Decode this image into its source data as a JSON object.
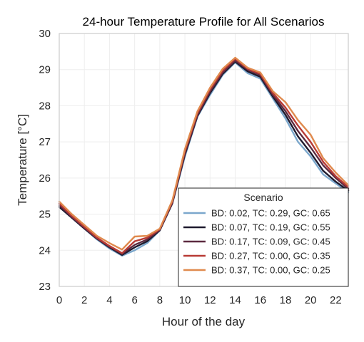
{
  "chart_data": {
    "type": "line",
    "title": "24-hour Temperature Profile for All Scenarios",
    "xlabel": "Hour of the day",
    "ylabel": "Temperature [°C]",
    "xlim": [
      0,
      23
    ],
    "ylim": [
      23,
      30
    ],
    "xticks": [
      0,
      2,
      4,
      6,
      8,
      10,
      12,
      14,
      16,
      18,
      20,
      22
    ],
    "yticks": [
      23,
      24,
      25,
      26,
      27,
      28,
      29,
      30
    ],
    "grid": true,
    "legend_title": "Scenario",
    "legend_position": "lower-right",
    "x": [
      0,
      1,
      2,
      3,
      4,
      5,
      6,
      7,
      8,
      9,
      10,
      11,
      12,
      13,
      14,
      15,
      16,
      17,
      18,
      19,
      20,
      21,
      22,
      23
    ],
    "series": [
      {
        "name": "BD: 0.02, TC: 0.29, GC: 0.65",
        "color": "#7ba7cc",
        "values": [
          25.2,
          24.9,
          24.6,
          24.3,
          24.05,
          23.85,
          24.0,
          24.2,
          24.55,
          25.3,
          26.6,
          27.7,
          28.3,
          28.85,
          29.2,
          28.9,
          28.75,
          28.2,
          27.65,
          27.0,
          26.6,
          26.1,
          25.85,
          25.6
        ]
      },
      {
        "name": "BD: 0.07, TC: 0.19, GC: 0.55",
        "color": "#1e1a2e",
        "values": [
          25.2,
          24.9,
          24.6,
          24.32,
          24.08,
          23.87,
          24.08,
          24.25,
          24.55,
          25.3,
          26.65,
          27.72,
          28.35,
          28.88,
          29.22,
          28.95,
          28.8,
          28.25,
          27.75,
          27.15,
          26.7,
          26.2,
          25.9,
          25.65
        ]
      },
      {
        "name": "BD: 0.17, TC: 0.09, GC: 0.45",
        "color": "#5c2a40",
        "values": [
          25.25,
          24.92,
          24.62,
          24.33,
          24.1,
          23.9,
          24.15,
          24.3,
          24.57,
          25.32,
          26.7,
          27.75,
          28.4,
          28.92,
          29.25,
          29.0,
          28.85,
          28.3,
          27.85,
          27.3,
          26.85,
          26.35,
          26.0,
          25.7
        ]
      },
      {
        "name": "BD: 0.27, TC: 0.00, GC: 0.35",
        "color": "#b83a35",
        "values": [
          25.3,
          24.95,
          24.65,
          24.35,
          24.12,
          23.92,
          24.25,
          24.35,
          24.58,
          25.35,
          26.75,
          27.8,
          28.45,
          28.97,
          29.3,
          29.02,
          28.88,
          28.35,
          27.95,
          27.45,
          27.0,
          26.45,
          26.05,
          25.75
        ]
      },
      {
        "name": "BD: 0.37, TC: 0.00, GC: 0.25",
        "color": "#e08a4e",
        "values": [
          25.35,
          25.0,
          24.7,
          24.4,
          24.2,
          24.02,
          24.38,
          24.4,
          24.6,
          25.38,
          26.8,
          27.85,
          28.5,
          29.02,
          29.33,
          29.05,
          28.92,
          28.4,
          28.1,
          27.6,
          27.2,
          26.55,
          26.15,
          25.8
        ]
      }
    ]
  }
}
